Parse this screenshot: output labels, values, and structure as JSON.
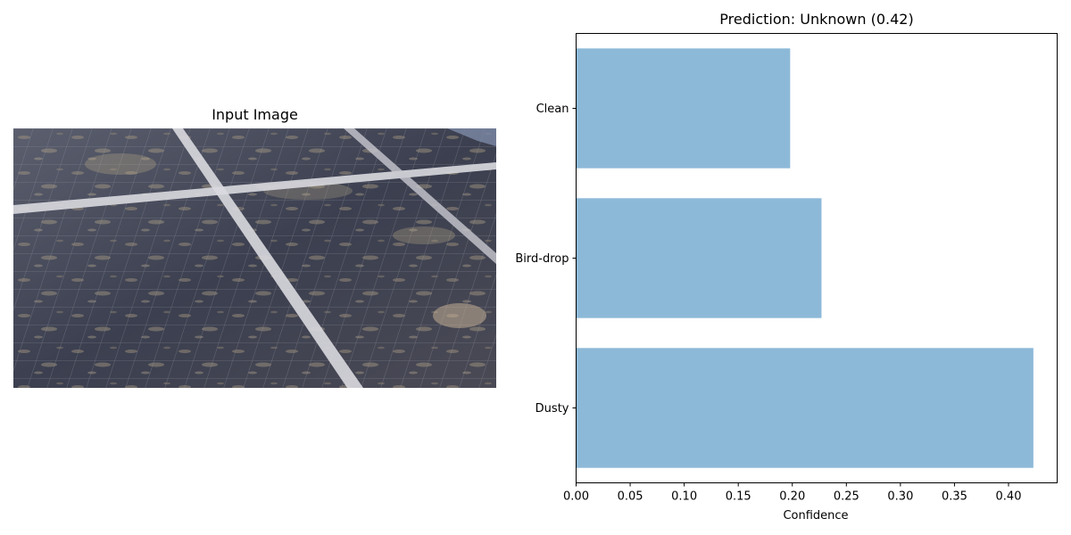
{
  "left_panel": {
    "title": "Input Image",
    "image_subject": "photo of dusty solar panels"
  },
  "chart_data": {
    "type": "bar",
    "orientation": "horizontal",
    "title": "Prediction: Unknown (0.42)",
    "xlabel": "Confidence",
    "ylabel": "",
    "categories": [
      "Dusty",
      "Bird-drop",
      "Clean"
    ],
    "values": [
      0.423,
      0.227,
      0.198
    ],
    "xlim": [
      0,
      0.445
    ],
    "xticks": [
      "0.00",
      "0.05",
      "0.10",
      "0.15",
      "0.20",
      "0.25",
      "0.30",
      "0.35",
      "0.40"
    ],
    "bar_color": "#8db9d8",
    "grid": false,
    "legend": "none"
  }
}
